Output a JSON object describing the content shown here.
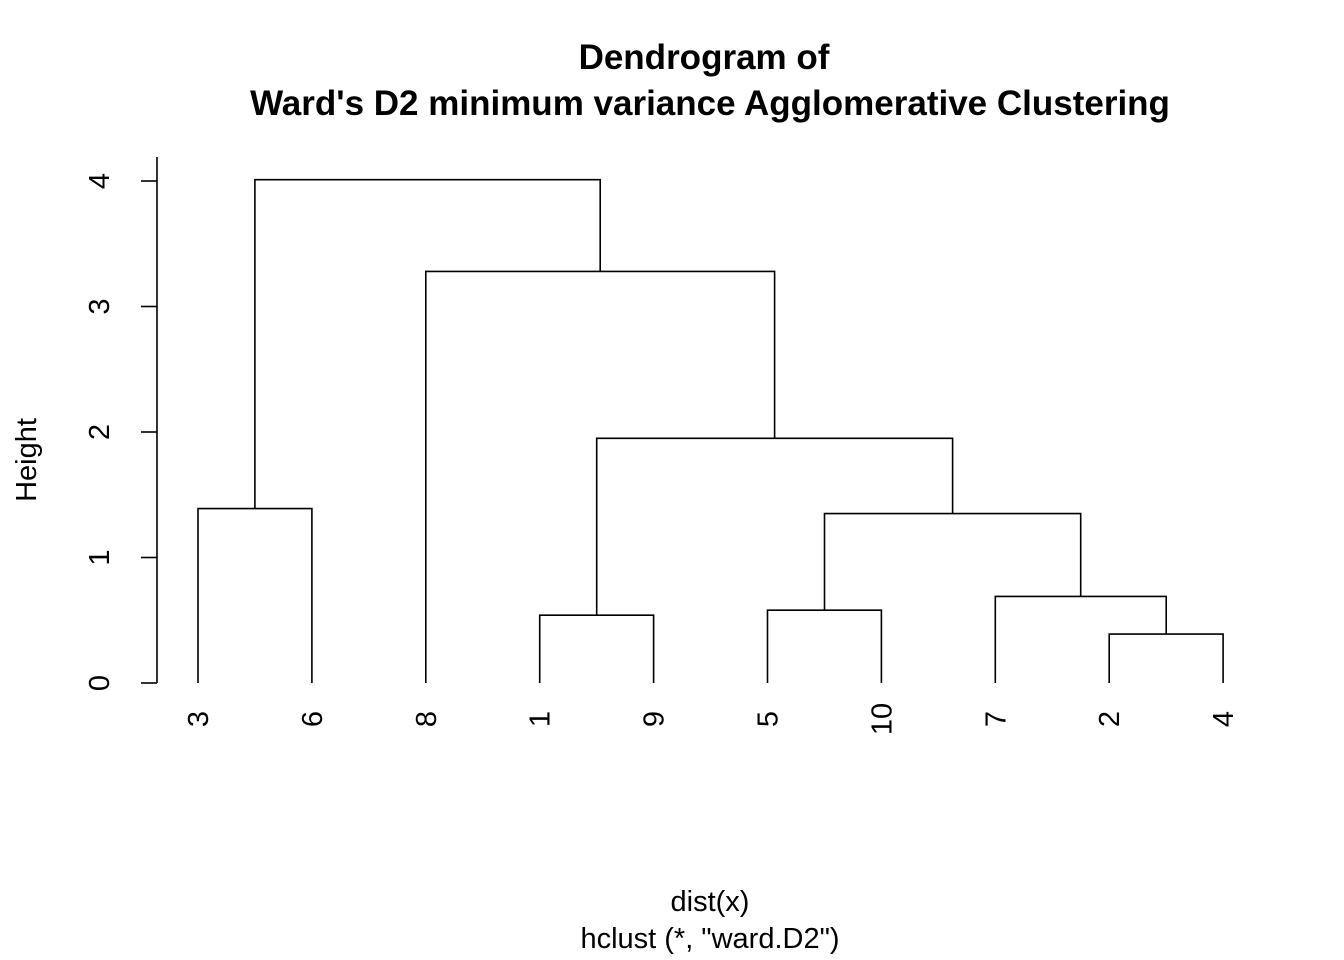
{
  "chart_data": {
    "type": "dendrogram",
    "title_lines": [
      "Dendrogram of",
      "Ward's D2 minimum variance Agglomerative Clustering"
    ],
    "xlabel": "dist(x)",
    "sublabel": "hclust (*, \"ward.D2\")",
    "ylabel": "Height",
    "ylim": [
      0,
      4
    ],
    "y_ticks": [
      "0",
      "1",
      "2",
      "3",
      "4"
    ],
    "leaf_order": [
      "3",
      "6",
      "8",
      "1",
      "9",
      "5",
      "10",
      "7",
      "2",
      "4"
    ],
    "merges": [
      {
        "left": "2",
        "right": "4",
        "height": 0.39
      },
      {
        "left": "1",
        "right": "9",
        "height": 0.54
      },
      {
        "left": "5",
        "right": "10",
        "height": 0.58
      },
      {
        "left": "7",
        "right": "m1",
        "height": 0.69
      },
      {
        "left": "m3",
        "right": "m4",
        "height": 1.35
      },
      {
        "left": "3",
        "right": "6",
        "height": 1.39
      },
      {
        "left": "m2",
        "right": "m5",
        "height": 1.95
      },
      {
        "left": "8",
        "right": "m7",
        "height": 3.28
      },
      {
        "left": "m6",
        "right": "m8",
        "height": 4.01
      }
    ]
  }
}
